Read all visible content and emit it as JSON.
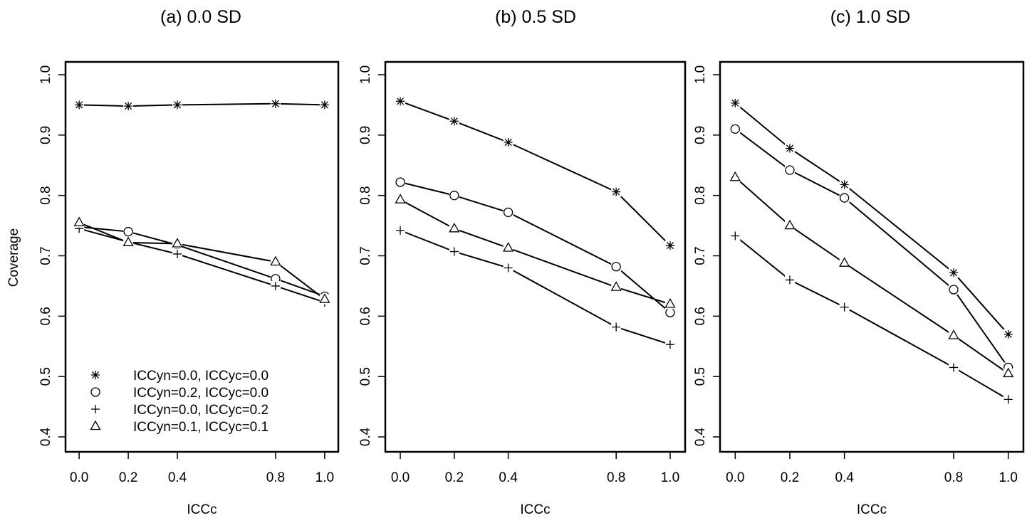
{
  "chart_data": [
    {
      "type": "line",
      "title": "(a) 0.0 SD",
      "xlabel": "ICCc",
      "ylabel": "Coverage",
      "x": [
        0.0,
        0.2,
        0.4,
        0.8,
        1.0
      ],
      "xticks": [
        "0.0",
        "0.2",
        "0.4",
        "0.8",
        "1.0"
      ],
      "ylim": [
        0.4,
        1.0
      ],
      "yticks": [
        "0.4",
        "0.5",
        "0.6",
        "0.7",
        "0.8",
        "0.9",
        "1.0"
      ],
      "grid": false,
      "legend_position": "bottom-left",
      "series": [
        {
          "name": "ICCyn=0.0, ICCyc=0.0",
          "marker": "asterisk",
          "values": [
            0.95,
            0.948,
            0.95,
            0.952,
            0.95
          ]
        },
        {
          "name": "ICCyn=0.2, ICCyc=0.0",
          "marker": "circle",
          "values": [
            0.748,
            0.74,
            0.718,
            0.662,
            0.633
          ]
        },
        {
          "name": "ICCyn=0.0, ICCyc=0.2",
          "marker": "plus",
          "values": [
            0.745,
            0.723,
            0.703,
            0.65,
            0.623
          ]
        },
        {
          "name": "ICCyn=0.1, ICCyc=0.1",
          "marker": "triangle",
          "values": [
            0.755,
            0.722,
            0.72,
            0.69,
            0.628
          ]
        }
      ]
    },
    {
      "type": "line",
      "title": "(b) 0.5 SD",
      "xlabel": "ICCc",
      "ylabel": "",
      "x": [
        0.0,
        0.2,
        0.4,
        0.8,
        1.0
      ],
      "xticks": [
        "0.0",
        "0.2",
        "0.4",
        "0.8",
        "1.0"
      ],
      "ylim": [
        0.4,
        1.0
      ],
      "yticks": [
        "0.4",
        "0.5",
        "0.6",
        "0.7",
        "0.8",
        "0.9",
        "1.0"
      ],
      "grid": false,
      "series": [
        {
          "marker": "asterisk",
          "values": [
            0.956,
            0.923,
            0.888,
            0.806,
            0.717
          ]
        },
        {
          "marker": "circle",
          "values": [
            0.822,
            0.8,
            0.772,
            0.682,
            0.606
          ]
        },
        {
          "marker": "plus",
          "values": [
            0.742,
            0.707,
            0.68,
            0.582,
            0.553
          ]
        },
        {
          "marker": "triangle",
          "values": [
            0.793,
            0.745,
            0.713,
            0.648,
            0.62
          ]
        }
      ]
    },
    {
      "type": "line",
      "title": "(c) 1.0 SD",
      "xlabel": "ICCc",
      "ylabel": "",
      "x": [
        0.0,
        0.2,
        0.4,
        0.8,
        1.0
      ],
      "xticks": [
        "0.0",
        "0.2",
        "0.4",
        "0.8",
        "1.0"
      ],
      "ylim": [
        0.4,
        1.0
      ],
      "yticks": [
        "0.4",
        "0.5",
        "0.6",
        "0.7",
        "0.8",
        "0.9",
        "1.0"
      ],
      "grid": false,
      "series": [
        {
          "marker": "asterisk",
          "values": [
            0.953,
            0.878,
            0.818,
            0.672,
            0.57
          ]
        },
        {
          "marker": "circle",
          "values": [
            0.91,
            0.842,
            0.796,
            0.644,
            0.515
          ]
        },
        {
          "marker": "plus",
          "values": [
            0.733,
            0.66,
            0.615,
            0.515,
            0.462
          ]
        },
        {
          "marker": "triangle",
          "values": [
            0.83,
            0.75,
            0.688,
            0.568,
            0.505
          ]
        }
      ]
    }
  ]
}
